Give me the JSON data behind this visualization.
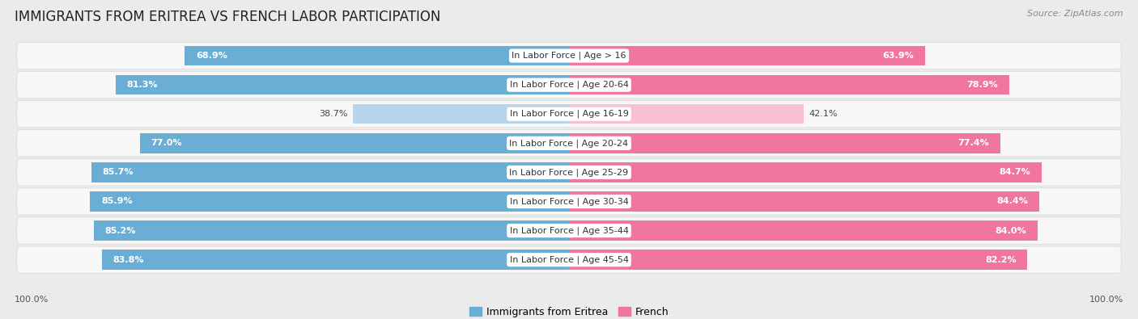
{
  "title": "IMMIGRANTS FROM ERITREA VS FRENCH LABOR PARTICIPATION",
  "source": "Source: ZipAtlas.com",
  "categories": [
    "In Labor Force | Age > 16",
    "In Labor Force | Age 20-64",
    "In Labor Force | Age 16-19",
    "In Labor Force | Age 20-24",
    "In Labor Force | Age 25-29",
    "In Labor Force | Age 30-34",
    "In Labor Force | Age 35-44",
    "In Labor Force | Age 45-54"
  ],
  "eritrea_values": [
    68.9,
    81.3,
    38.7,
    77.0,
    85.7,
    85.9,
    85.2,
    83.8
  ],
  "french_values": [
    63.9,
    78.9,
    42.1,
    77.4,
    84.7,
    84.4,
    84.0,
    82.2
  ],
  "eritrea_color": "#6aaed6",
  "eritrea_color_light": "#b8d4ea",
  "french_color": "#f075a0",
  "french_color_light": "#f8c0d5",
  "bg_color": "#ebebeb",
  "row_bg_color": "#f7f7f7",
  "row_shadow_color": "#d8d8d8",
  "label_bg": "#ffffff",
  "max_value": 100.0,
  "bar_height": 0.68,
  "title_fontsize": 12,
  "label_fontsize": 8,
  "value_fontsize": 8,
  "legend_fontsize": 9,
  "source_fontsize": 8
}
